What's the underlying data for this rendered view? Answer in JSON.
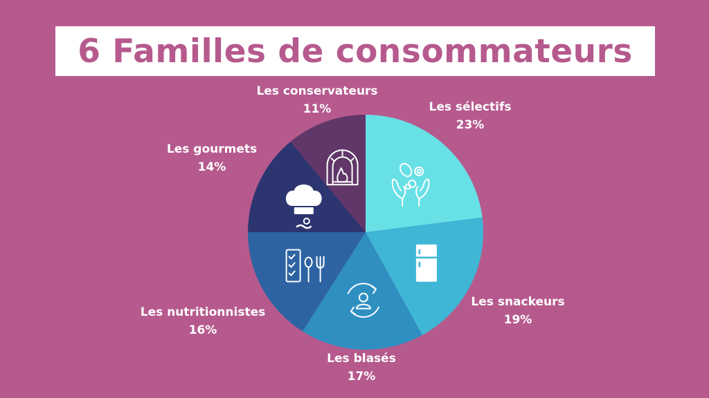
{
  "title": "6 Familles de consommateurs",
  "colors": {
    "background": "#b65a8e",
    "title_text": "#b65a8e",
    "title_box": "#ffffff",
    "icon_stroke": "#ffffff"
  },
  "chart_data": {
    "type": "pie",
    "title": "6 Familles de consommateurs",
    "start": "12 o'clock",
    "direction": "clockwise",
    "slices": [
      {
        "label": "Les sélectifs",
        "value": 23,
        "value_label": "23%",
        "color": "#67e0e6",
        "icon": "hands-food-icon"
      },
      {
        "label": "Les snackeurs",
        "value": 19,
        "value_label": "19%",
        "color": "#3fb6d6",
        "icon": "fridge-icon"
      },
      {
        "label": "Les blasés",
        "value": 17,
        "value_label": "17%",
        "color": "#2e8fc0",
        "icon": "user-cycle-icon"
      },
      {
        "label": "Les nutritionnistes",
        "value": 16,
        "value_label": "16%",
        "color": "#2d63a2",
        "icon": "checklist-utensils-icon"
      },
      {
        "label": "Les gourmets",
        "value": 14,
        "value_label": "14%",
        "color": "#2c3570",
        "icon": "chef-hat-icon"
      },
      {
        "label": "Les conservateurs",
        "value": 11,
        "value_label": "11%",
        "color": "#603768",
        "icon": "oven-fire-icon"
      }
    ]
  }
}
